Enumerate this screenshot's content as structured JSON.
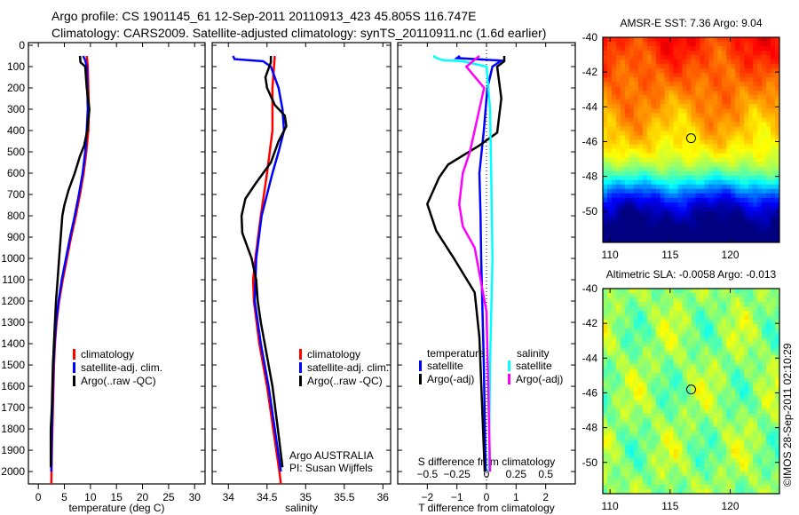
{
  "header": {
    "line1": "Argo profile: CS 1901145_61 12-Sep-2011 20110913_423 45.805S 116.747E",
    "line2": "Climatology: CARS2009. Satellite-adjusted climatology: synTS_20110911.nc (1.6d earlier)"
  },
  "credit": "©IMOS 28-Sep-2011 02:10:29",
  "colors": {
    "clim": "#ff0000",
    "sat": "#0000ff",
    "argo": "#000000",
    "s_sat": "#00ffff",
    "s_argo": "#ff00ff"
  },
  "chart_data": [
    {
      "type": "line",
      "id": "temperature",
      "xlabel": "temperature (deg C)",
      "ylabel": "",
      "xlim": [
        -1.9,
        32
      ],
      "ylim": [
        0,
        2058
      ],
      "xticks": [
        0,
        5,
        10,
        15,
        20,
        25,
        30
      ],
      "yticks": [
        0,
        100,
        200,
        300,
        400,
        500,
        600,
        700,
        800,
        900,
        1000,
        1100,
        1200,
        1300,
        1400,
        1500,
        1600,
        1700,
        1800,
        1900,
        2000
      ],
      "legend": [
        "climatology",
        "satellite-adj. clim.",
        "Argo(..raw -QC)"
      ],
      "series": [
        {
          "name": "climatology",
          "color": "#ff0000",
          "depth": [
            50,
            100,
            200,
            300,
            400,
            500,
            600,
            700,
            800,
            900,
            1000,
            1100,
            1200,
            1300,
            1400,
            1500,
            1600,
            1700,
            1800,
            1900,
            2058
          ],
          "values": [
            9.3,
            9.5,
            9.6,
            9.7,
            9.6,
            9.2,
            8.7,
            8.0,
            7.2,
            6.3,
            5.5,
            4.7,
            4.0,
            3.5,
            3.2,
            3.0,
            2.9,
            2.8,
            2.7,
            2.6,
            2.5
          ]
        },
        {
          "name": "satellite-adj. clim.",
          "color": "#0000ff",
          "depth": [
            50,
            70,
            100,
            200,
            300,
            400,
            500,
            600,
            700,
            800,
            900,
            1000,
            1100,
            1200,
            1300,
            1400,
            1500,
            1600,
            1700,
            1800,
            2000
          ],
          "values": [
            8.6,
            9.0,
            9.3,
            9.4,
            9.5,
            9.3,
            9.0,
            8.5,
            7.8,
            7.0,
            6.1,
            5.3,
            4.5,
            3.9,
            3.4,
            3.1,
            2.9,
            2.8,
            2.7,
            2.6,
            2.5
          ]
        },
        {
          "name": "Argo(..raw -QC)",
          "color": "#000000",
          "depth": [
            50,
            80,
            100,
            200,
            300,
            400,
            470,
            520,
            600,
            680,
            750,
            800,
            900,
            1000,
            1100,
            1200,
            1300,
            1500,
            1700,
            1800,
            1980
          ],
          "values": [
            8.0,
            8.1,
            9.0,
            9.3,
            9.8,
            9.4,
            8.8,
            8.0,
            7.0,
            5.8,
            5.0,
            4.6,
            4.3,
            4.0,
            3.7,
            3.4,
            3.2,
            2.8,
            2.6,
            2.4,
            2.4
          ]
        }
      ]
    },
    {
      "type": "line",
      "id": "salinity",
      "xlabel": "salinity",
      "xlim": [
        33.79,
        36.1
      ],
      "ylim": [
        0,
        2058
      ],
      "xticks": [
        34,
        34.5,
        35,
        35.5,
        36
      ],
      "legend": [
        "climatology",
        "satellite-adj. clim.",
        "Argo(..raw -QC)"
      ],
      "annotation": [
        "Argo AUSTRALIA",
        "PI: Susan Wijffels"
      ],
      "series": [
        {
          "name": "climatology",
          "color": "#ff0000",
          "depth": [
            50,
            200,
            400,
            600,
            800,
            1000,
            1100,
            1200,
            1400,
            1600,
            1800,
            2000,
            2058
          ],
          "values": [
            34.6,
            34.57,
            34.57,
            34.5,
            34.42,
            34.35,
            34.32,
            34.33,
            34.4,
            34.5,
            34.58,
            34.66,
            34.68
          ]
        },
        {
          "name": "satellite-adj. clim.",
          "color": "#0000ff",
          "depth": [
            50,
            65,
            75,
            100,
            200,
            300,
            400,
            500,
            600,
            700,
            800,
            1000,
            1200,
            1400,
            1600,
            1800,
            2000
          ],
          "values": [
            34.06,
            34.08,
            34.45,
            34.55,
            34.65,
            34.7,
            34.72,
            34.65,
            34.57,
            34.5,
            34.43,
            34.36,
            34.34,
            34.42,
            34.52,
            34.6,
            34.68
          ]
        },
        {
          "name": "Argo(..raw -QC)",
          "color": "#000000",
          "depth": [
            50,
            80,
            150,
            200,
            280,
            330,
            380,
            450,
            550,
            650,
            720,
            800,
            880,
            950,
            1000,
            1100,
            1200,
            1300,
            1400,
            1600,
            1800,
            1980
          ],
          "values": [
            34.55,
            34.55,
            34.48,
            34.5,
            34.6,
            34.73,
            34.75,
            34.65,
            34.55,
            34.35,
            34.22,
            34.17,
            34.18,
            34.25,
            34.3,
            34.36,
            34.38,
            34.42,
            34.47,
            34.57,
            34.64,
            34.7
          ]
        }
      ]
    },
    {
      "type": "line",
      "id": "differences",
      "xlabel": "T difference from climatology",
      "xlabel2": "S difference from climatology",
      "xlim": [
        -3,
        3
      ],
      "xlim2": [
        -0.75,
        0.75
      ],
      "xticks": [
        -2,
        -1,
        0,
        1,
        2
      ],
      "xticks2": [
        -0.5,
        -0.25,
        0,
        0.25,
        0.5
      ],
      "ylim": [
        0,
        2058
      ],
      "legend_headers": [
        "temperature",
        "salinity"
      ],
      "legend": [
        "satellite",
        "Argo(-adj)",
        "satellite",
        "Argo(-adj)"
      ],
      "series": [
        {
          "name": "temperature satellite",
          "axis": "T",
          "color": "#0000ff",
          "depth": [
            50,
            60,
            72,
            100,
            200,
            400,
            600,
            800,
            1000,
            1500,
            2000
          ],
          "values": [
            -0.9,
            -1.0,
            0.5,
            0.2,
            0.03,
            -0.09,
            -0.24,
            -0.2,
            -0.18,
            -0.09,
            -0.03
          ]
        },
        {
          "name": "temperature Argo(-adj)",
          "axis": "T",
          "color": "#000000",
          "depth": [
            50,
            75,
            100,
            250,
            410,
            470,
            560,
            620,
            745,
            870,
            1000,
            1160,
            1370,
            1580,
            2000
          ],
          "values": [
            0.6,
            0.6,
            0.36,
            0.5,
            0.36,
            -0.24,
            -1.3,
            -1.6,
            -2.0,
            -1.7,
            -1.1,
            -0.4,
            -0.24,
            -0.18,
            -0.06
          ]
        },
        {
          "name": "salinity satellite",
          "axis": "S",
          "color": "#00ffff",
          "depth": [
            50,
            60,
            70,
            75,
            100,
            300,
            600,
            1000,
            1500,
            2000
          ],
          "values": [
            -0.45,
            -0.42,
            -0.37,
            -0.2,
            0.0,
            0.03,
            0.04,
            0.05,
            0.03,
            0.02
          ]
        },
        {
          "name": "salinity Argo(-adj)",
          "axis": "S",
          "color": "#ff00ff",
          "depth": [
            50,
            100,
            200,
            500,
            600,
            745,
            850,
            950,
            1250,
            1600,
            2000
          ],
          "values": [
            -0.06,
            -0.17,
            -0.02,
            -0.14,
            -0.2,
            -0.23,
            -0.2,
            -0.1,
            0.0,
            0.015,
            0.03
          ]
        }
      ]
    },
    {
      "type": "heatmap",
      "id": "sst_map",
      "title": "AMSR-E SST: 7.36 Argo: 9.04",
      "xlim": [
        109.4,
        124.1
      ],
      "ylim": [
        -51.8,
        -40
      ],
      "xticks": [
        110,
        115,
        120
      ],
      "yticks": [
        -40,
        -42,
        -44,
        -46,
        -48,
        -50
      ],
      "marker": {
        "lon": 116.747,
        "lat": -45.805
      }
    },
    {
      "type": "heatmap",
      "id": "sla_map",
      "title": "Altimetric SLA: -0.0058 Argo: -0.013",
      "xlim": [
        109.4,
        124.1
      ],
      "ylim": [
        -51.8,
        -40
      ],
      "xticks": [
        110,
        115,
        120
      ],
      "yticks": [
        -40,
        -42,
        -44,
        -46,
        -48,
        -50
      ],
      "marker": {
        "lon": 116.747,
        "lat": -45.805
      }
    }
  ]
}
